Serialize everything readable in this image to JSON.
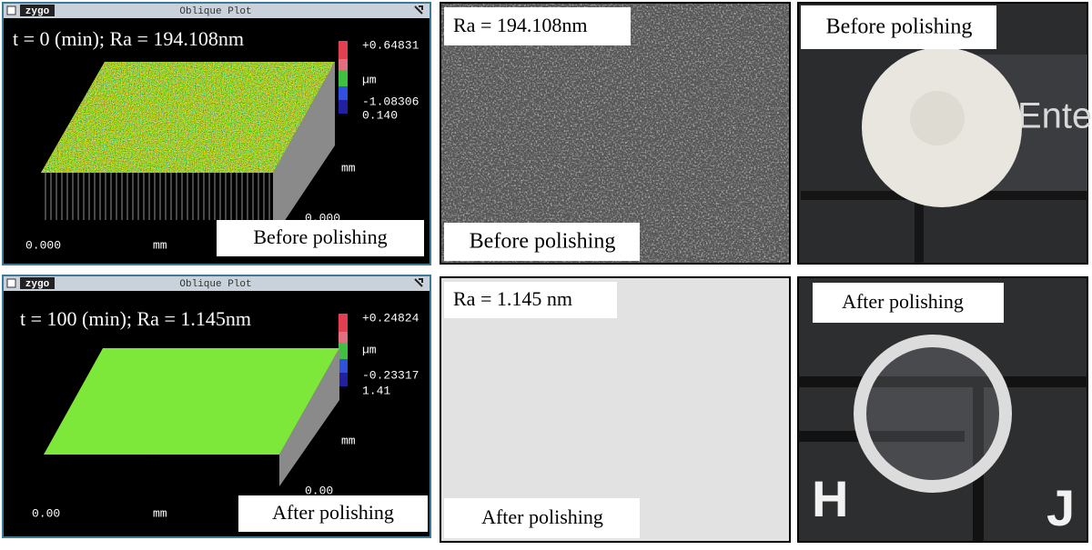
{
  "rows": [
    {
      "plot": {
        "app": "zygo",
        "title": "Oblique Plot",
        "caption": "t = 0 (min); Ra = 194.108nm",
        "scale_max": "+0.64831",
        "scale_unit": "µm",
        "scale_min": "-1.08306",
        "z_value": "0.140",
        "depth_label": "mm",
        "depth_value": "0.000",
        "x_start": "0.000",
        "x_label": "mm",
        "label": "Before polishing"
      },
      "micrograph": {
        "ra": "Ra = 194.108nm",
        "label": "Before polishing"
      },
      "photo": {
        "label": "Before polishing",
        "key_text": "Ente"
      }
    },
    {
      "plot": {
        "app": "zygo",
        "title": "Oblique Plot",
        "caption": "t = 100 (min); Ra = 1.145nm",
        "scale_max": "+0.24824",
        "scale_unit": "µm",
        "scale_min": "-0.23317",
        "z_value": "1.41",
        "depth_label": "mm",
        "depth_value": "0.00",
        "x_start": "0.00",
        "x_label": "mm",
        "label": "After polishing"
      },
      "micrograph": {
        "ra": "Ra = 1.145 nm",
        "label": "After polishing"
      },
      "photo": {
        "label": "After polishing",
        "key_left": "H",
        "key_right": "J"
      }
    }
  ]
}
